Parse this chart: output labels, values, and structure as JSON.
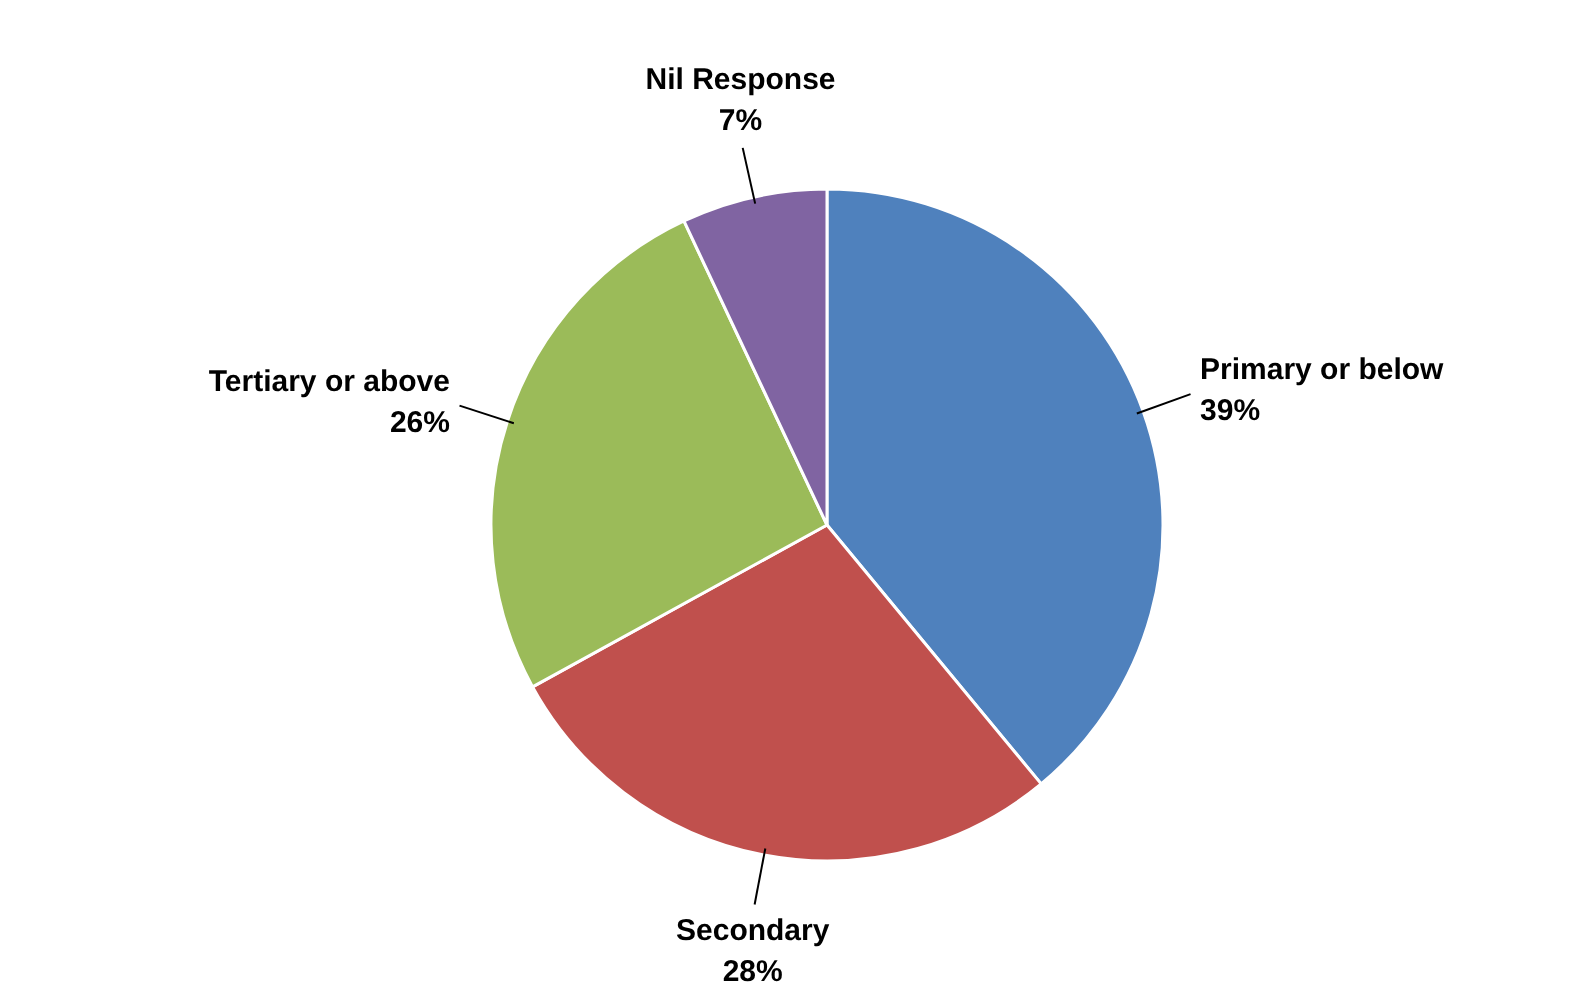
{
  "chart_data": {
    "type": "pie",
    "categories": [
      "Primary or below",
      "Secondary",
      "Tertiary or above",
      "Nil Response"
    ],
    "values": [
      39,
      28,
      26,
      7
    ],
    "colors": [
      "#4f81bd",
      "#c0504d",
      "#9bbb59",
      "#8064a2"
    ],
    "value_labels": [
      "39%",
      "28%",
      "26%",
      "7%"
    ]
  }
}
